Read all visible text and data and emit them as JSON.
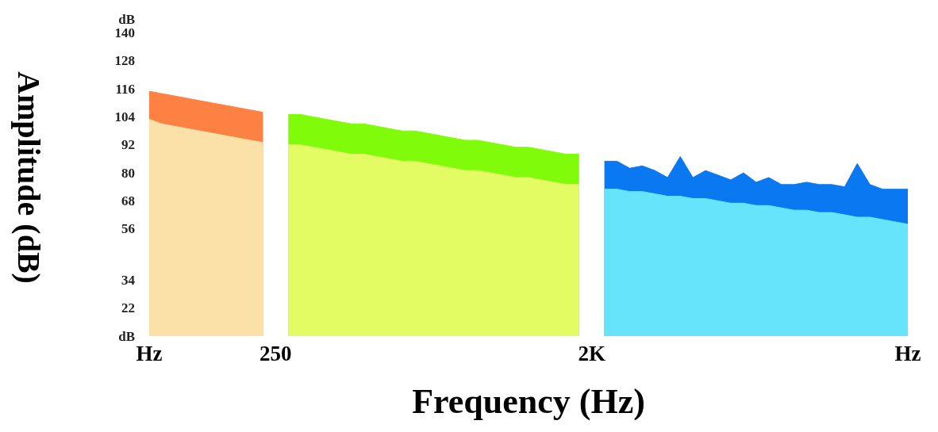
{
  "chart_data": {
    "type": "area",
    "xlabel": "Frequency (Hz)",
    "ylabel": "Amplitude (dB)",
    "categories": [
      "Hz",
      null,
      null,
      null,
      null,
      null,
      null,
      null,
      null,
      null,
      "250",
      null,
      null,
      null,
      null,
      null,
      null,
      null,
      null,
      null,
      null,
      null,
      null,
      null,
      null,
      null,
      null,
      null,
      null,
      null,
      null,
      null,
      null,
      null,
      null,
      "2K",
      null,
      null,
      null,
      null,
      null,
      null,
      null,
      null,
      null,
      null,
      null,
      null,
      null,
      null,
      null,
      null,
      null,
      null,
      null,
      null,
      null,
      null,
      null,
      null,
      "Hz"
    ],
    "grid": false,
    "marker": "none",
    "ylim": [
      10,
      146
    ],
    "yticks": [
      {
        "value": 10,
        "label": "dB"
      },
      22,
      34,
      56,
      68,
      80,
      92,
      104,
      116,
      128,
      140,
      {
        "value": 146,
        "label": "dB"
      }
    ],
    "series": [
      {
        "color": "#fc8142",
        "values": [
          115,
          114,
          113,
          112,
          111,
          110,
          109,
          108,
          107,
          106,
          null,
          null,
          null,
          null,
          null,
          null,
          null,
          null,
          null,
          null,
          null,
          null,
          null,
          null,
          null,
          null,
          null,
          null,
          null,
          null,
          null,
          null,
          null,
          null,
          null,
          null,
          null,
          null,
          null,
          null,
          null,
          null,
          null,
          null,
          null,
          null,
          null,
          null,
          null,
          null,
          null,
          null,
          null,
          null,
          null,
          null,
          null,
          null,
          null,
          null,
          null
        ]
      },
      {
        "color": "#fbe0a8",
        "values": [
          103,
          101,
          100,
          99,
          98,
          97,
          96,
          95,
          94,
          93,
          null,
          null,
          null,
          null,
          null,
          null,
          null,
          null,
          null,
          null,
          null,
          null,
          null,
          null,
          null,
          null,
          null,
          null,
          null,
          null,
          null,
          null,
          null,
          null,
          null,
          null,
          null,
          null,
          null,
          null,
          null,
          null,
          null,
          null,
          null,
          null,
          null,
          null,
          null,
          null,
          null,
          null,
          null,
          null,
          null,
          null,
          null,
          null,
          null,
          null,
          null
        ]
      },
      {
        "color": "#80fc0a",
        "values": [
          null,
          null,
          null,
          null,
          null,
          null,
          null,
          null,
          null,
          null,
          null,
          105,
          105,
          104,
          103,
          102,
          101,
          101,
          100,
          99,
          98,
          98,
          97,
          96,
          95,
          94,
          94,
          93,
          92,
          91,
          91,
          90,
          89,
          88,
          88,
          null,
          null,
          null,
          null,
          null,
          null,
          null,
          null,
          null,
          null,
          null,
          null,
          null,
          null,
          null,
          null,
          null,
          null,
          null,
          null,
          null,
          null,
          null,
          null,
          null,
          null
        ]
      },
      {
        "color": "#e4fc64",
        "values": [
          null,
          null,
          null,
          null,
          null,
          null,
          null,
          null,
          null,
          null,
          null,
          92,
          92,
          91,
          90,
          89,
          88,
          88,
          87,
          86,
          85,
          85,
          84,
          83,
          82,
          81,
          81,
          80,
          79,
          78,
          78,
          77,
          76,
          75,
          75,
          null,
          null,
          null,
          null,
          null,
          null,
          null,
          null,
          null,
          null,
          null,
          null,
          null,
          null,
          null,
          null,
          null,
          null,
          null,
          null,
          null,
          null,
          null,
          null,
          null,
          null
        ]
      },
      {
        "color": "#0a78f0",
        "values": [
          null,
          null,
          null,
          null,
          null,
          null,
          null,
          null,
          null,
          null,
          null,
          null,
          null,
          null,
          null,
          null,
          null,
          null,
          null,
          null,
          null,
          null,
          null,
          null,
          null,
          null,
          null,
          null,
          null,
          null,
          null,
          null,
          null,
          null,
          null,
          null,
          85,
          85,
          82,
          83,
          81,
          78,
          87,
          78,
          81,
          79,
          77,
          80,
          76,
          78,
          75,
          75,
          76,
          75,
          75,
          74,
          84,
          75,
          73,
          73,
          73
        ]
      },
      {
        "color": "#66e4fc",
        "values": [
          null,
          null,
          null,
          null,
          null,
          null,
          null,
          null,
          null,
          null,
          null,
          null,
          null,
          null,
          null,
          null,
          null,
          null,
          null,
          null,
          null,
          null,
          null,
          null,
          null,
          null,
          null,
          null,
          null,
          null,
          null,
          null,
          null,
          null,
          null,
          null,
          73,
          73,
          72,
          72,
          71,
          70,
          70,
          69,
          69,
          68,
          67,
          67,
          66,
          66,
          65,
          64,
          64,
          63,
          63,
          62,
          61,
          61,
          60,
          59,
          58
        ]
      }
    ]
  }
}
